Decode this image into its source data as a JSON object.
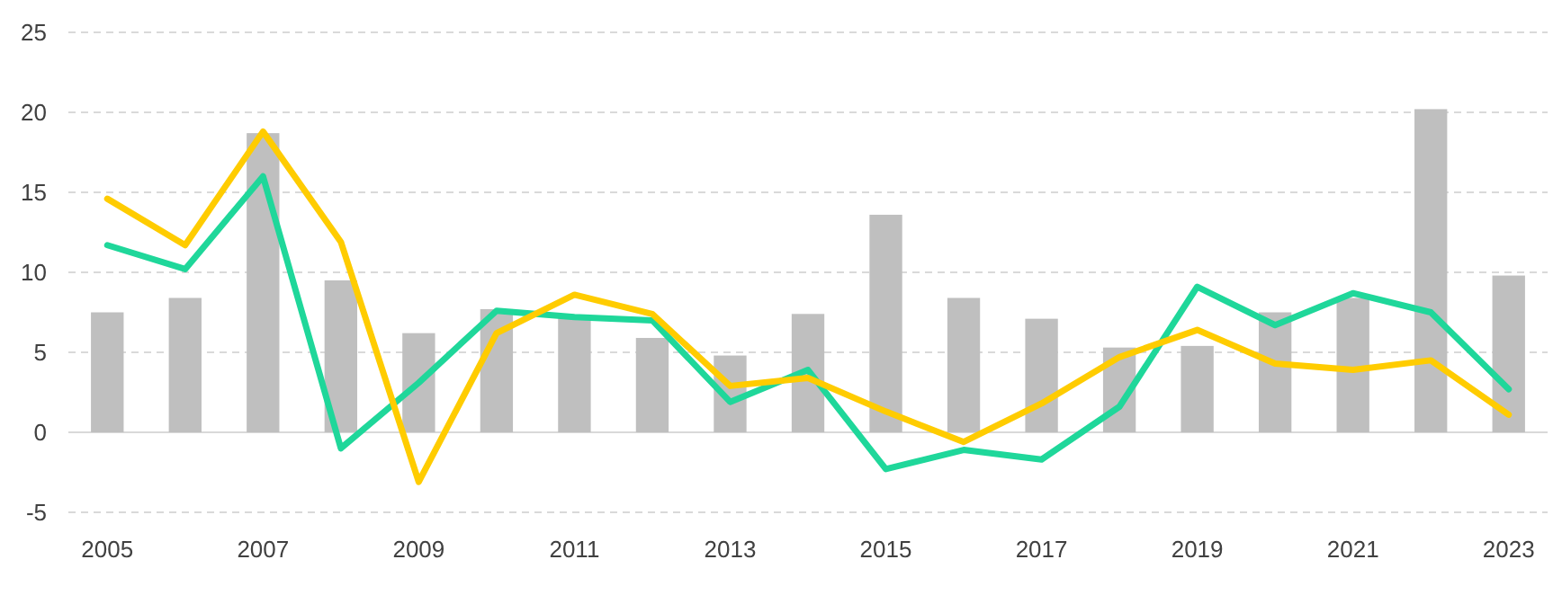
{
  "chart_data": {
    "type": "bar",
    "categories": [
      "2005",
      null,
      "2007",
      null,
      "2009",
      null,
      "2011",
      null,
      "2013",
      null,
      "2015",
      null,
      "2017",
      null,
      "2019",
      null,
      "2021",
      null,
      "2023"
    ],
    "series": [
      {
        "color": "#bfbfbf",
        "values": [
          7.5,
          8.4,
          18.7,
          9.5,
          6.2,
          7.7,
          7.3,
          5.9,
          4.8,
          7.4,
          13.6,
          8.4,
          7.1,
          5.3,
          5.4,
          7.5,
          8.4,
          20.2,
          9.8
        ]
      },
      {
        "type": "line",
        "color": "#1fd79a",
        "values": [
          11.7,
          10.2,
          16.0,
          -1.0,
          3.1,
          7.6,
          7.2,
          7.0,
          1.9,
          3.9,
          -2.3,
          -1.1,
          -1.7,
          1.6,
          9.1,
          6.7,
          8.7,
          7.5,
          2.7
        ]
      },
      {
        "type": "line",
        "color": "#ffcc00",
        "values": [
          14.6,
          11.7,
          18.8,
          11.9,
          -3.1,
          6.2,
          8.6,
          7.4,
          2.9,
          3.4,
          1.3,
          -0.6,
          1.8,
          4.7,
          6.4,
          4.3,
          3.9,
          4.5,
          1.1
        ]
      }
    ],
    "ylim": [
      -5,
      25
    ],
    "yticks": [
      -5,
      0,
      5,
      10,
      15,
      20,
      25
    ],
    "grid": "y"
  }
}
